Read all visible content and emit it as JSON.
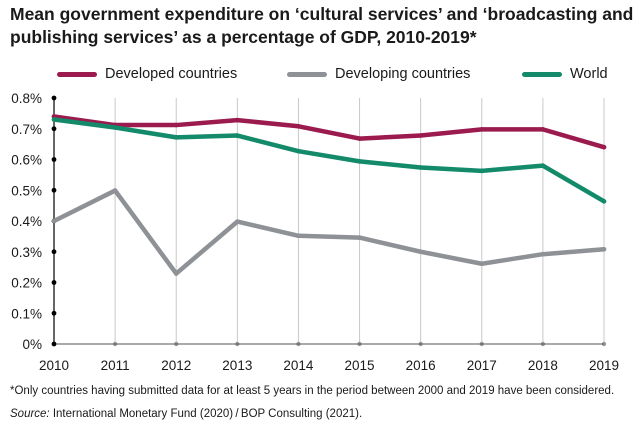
{
  "chart_data": {
    "type": "line",
    "title": "Mean government expenditure on ‘cultural services’ and ‘broadcasting and publishing services’ as a percentage of GDP, 2010-2019*",
    "x": [
      "2010",
      "2011",
      "2012",
      "2013",
      "2014",
      "2015",
      "2016",
      "2017",
      "2018",
      "2019"
    ],
    "y_ticks": [
      "0%",
      "0.1%",
      "0.2%",
      "0.3%",
      "0.4%",
      "0.5%",
      "0.6%",
      "0.7%",
      "0.8%"
    ],
    "ylim": [
      0,
      0.8
    ],
    "series": [
      {
        "name": "Developed countries",
        "color": "#9b1b4e",
        "values": [
          0.74,
          0.712,
          0.712,
          0.728,
          0.708,
          0.668,
          0.678,
          0.698,
          0.698,
          0.64
        ]
      },
      {
        "name": "Developing countries",
        "color": "#8e9196",
        "values": [
          0.4,
          0.499,
          0.229,
          0.398,
          0.352,
          0.346,
          0.3,
          0.261,
          0.292,
          0.308
        ]
      },
      {
        "name": "World",
        "color": "#138a6a",
        "values": [
          0.73,
          0.704,
          0.672,
          0.678,
          0.627,
          0.594,
          0.574,
          0.563,
          0.58,
          0.464
        ]
      }
    ],
    "legend_position": "top",
    "footnote": "*Only countries having submitted data for at least 5 years in the period between 2000 and 2019 have been considered.",
    "source_label": "Source:",
    "source_text": " International Monetary Fund (2020) / BOP Consulting (2021)."
  }
}
